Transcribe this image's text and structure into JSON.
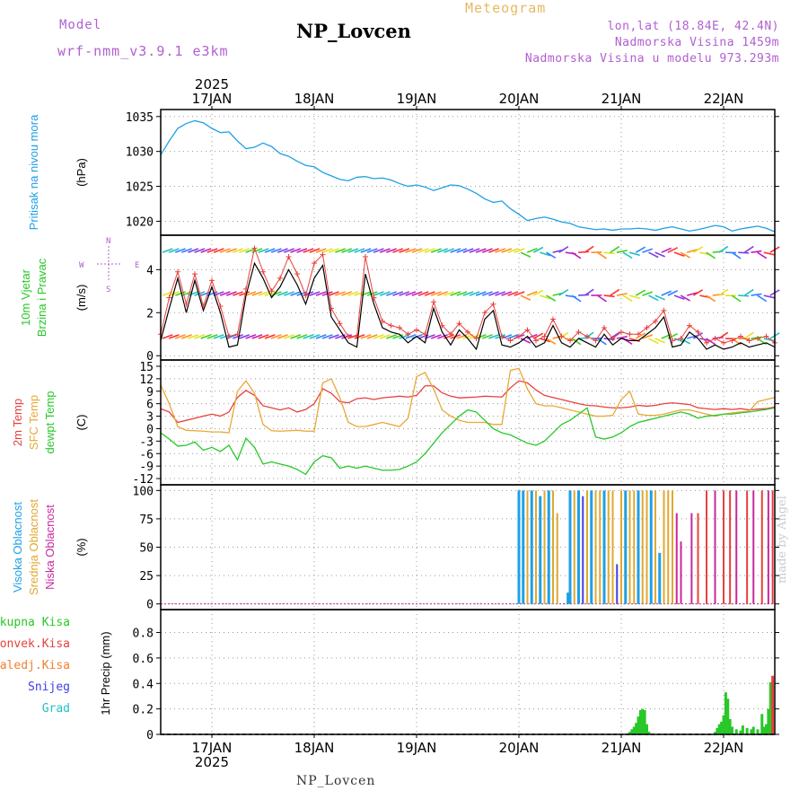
{
  "header": {
    "model_label": "Model",
    "model_name": "wrf-nmm_v3.9.1 e3km",
    "station_title": "NP_Lovcen",
    "meteogram_label": "Meteogram",
    "lonlat": "lon,lat (18.84E, 42.4N)",
    "altitude": "Nadmorska Visina 1459m",
    "model_altitude": "Nadmorska Visina u modelu 973.293m"
  },
  "footer": {
    "station": "NP_Lovcen",
    "watermark": "made by Angel"
  },
  "time_axis": {
    "year": "2025",
    "start_hour": 0,
    "end_hour": 144,
    "day_labels": [
      {
        "label": "17JAN",
        "hour": 12
      },
      {
        "label": "18JAN",
        "hour": 36
      },
      {
        "label": "19JAN",
        "hour": 60
      },
      {
        "label": "20JAN",
        "hour": 84
      },
      {
        "label": "21JAN",
        "hour": 108
      },
      {
        "label": "22JAN",
        "hour": 132
      }
    ]
  },
  "colors": {
    "pressure": "#1ea0e6",
    "temp2m": "#e8403c",
    "sfc": "#e8a838",
    "dewpt": "#28c828",
    "high": "#1ea0e6",
    "mid": "#e0a830",
    "low": "#c8289c",
    "rain": "#28c828",
    "conv": "#e8403c",
    "frozen": "#f08030",
    "snow": "#4040e0",
    "hail": "#20c0c0",
    "wind_obs": "#e8403c",
    "wind_model": "#000000"
  },
  "chart_data": [
    {
      "type": "line",
      "id": "pressure",
      "ylabel_lines": [
        "Pritisak na nivou mora"
      ],
      "units": "(hPa)",
      "ylim": [
        1018,
        1036
      ],
      "yticks": [
        1020,
        1025,
        1030,
        1035
      ],
      "hours": [
        0,
        2,
        4,
        6,
        8,
        10,
        12,
        14,
        16,
        18,
        20,
        22,
        24,
        26,
        28,
        30,
        32,
        34,
        36,
        38,
        40,
        42,
        44,
        46,
        48,
        50,
        52,
        54,
        56,
        58,
        60,
        62,
        64,
        66,
        68,
        70,
        72,
        74,
        76,
        78,
        80,
        82,
        84,
        86,
        88,
        90,
        92,
        94,
        96,
        98,
        100,
        102,
        104,
        106,
        108,
        110,
        112,
        114,
        116,
        118,
        120,
        122,
        124,
        126,
        128,
        130,
        132,
        134,
        136,
        138,
        140,
        142,
        144
      ],
      "values": [
        1029.5,
        1031.5,
        1033.3,
        1034.0,
        1034.4,
        1034.1,
        1033.3,
        1032.7,
        1032.8,
        1031.5,
        1030.4,
        1030.6,
        1031.2,
        1030.7,
        1029.7,
        1029.3,
        1028.6,
        1028.0,
        1027.8,
        1027.0,
        1026.5,
        1026.0,
        1025.8,
        1026.3,
        1026.4,
        1026.1,
        1026.2,
        1025.9,
        1025.4,
        1025.0,
        1025.2,
        1024.9,
        1024.4,
        1024.8,
        1025.2,
        1025.1,
        1024.6,
        1024.0,
        1023.2,
        1022.7,
        1022.9,
        1021.8,
        1021.0,
        1020.1,
        1020.4,
        1020.6,
        1020.3,
        1019.9,
        1019.7,
        1019.2,
        1019.0,
        1018.8,
        1018.9,
        1018.7,
        1018.9,
        1018.9,
        1019.0,
        1018.9,
        1018.7,
        1019.0,
        1019.2,
        1018.9,
        1018.6,
        1018.8,
        1019.1,
        1019.4,
        1019.2,
        1018.6,
        1018.9,
        1019.1,
        1019.3,
        1019.0,
        1018.5
      ]
    },
    {
      "type": "line",
      "id": "wind",
      "ylabel_lines": [
        "10m Vjetar",
        "Brzina i Pravac"
      ],
      "units": "(m/s)",
      "compass_labels": [
        "W",
        "E",
        "N",
        "S"
      ],
      "ylim": [
        -0.2,
        5.6
      ],
      "yticks": [
        0,
        2,
        4
      ],
      "hours": [
        0,
        2,
        4,
        6,
        8,
        10,
        12,
        14,
        16,
        18,
        20,
        22,
        24,
        26,
        28,
        30,
        32,
        34,
        36,
        38,
        40,
        42,
        44,
        46,
        48,
        50,
        52,
        54,
        56,
        58,
        60,
        62,
        64,
        66,
        68,
        70,
        72,
        74,
        76,
        78,
        80,
        82,
        84,
        86,
        88,
        90,
        92,
        94,
        96,
        98,
        100,
        102,
        104,
        106,
        108,
        110,
        112,
        114,
        116,
        118,
        120,
        122,
        124,
        126,
        128,
        130,
        132,
        134,
        136,
        138,
        140,
        142,
        144
      ],
      "model": [
        0.7,
        2.2,
        3.6,
        2.0,
        3.5,
        2.1,
        3.2,
        2.0,
        0.4,
        0.5,
        2.8,
        4.3,
        3.6,
        2.7,
        3.2,
        4.0,
        3.3,
        2.4,
        3.6,
        4.2,
        1.8,
        1.2,
        0.6,
        0.4,
        3.8,
        2.4,
        1.3,
        1.1,
        1.0,
        0.6,
        0.9,
        0.6,
        2.2,
        1.1,
        0.5,
        1.2,
        0.8,
        0.3,
        1.7,
        2.1,
        0.5,
        0.4,
        0.6,
        0.9,
        0.4,
        0.6,
        1.4,
        0.6,
        0.4,
        0.8,
        0.6,
        0.4,
        1.0,
        0.5,
        0.8,
        0.7,
        0.7,
        1.0,
        1.3,
        1.8,
        0.4,
        0.5,
        1.1,
        0.8,
        0.3,
        0.5,
        0.3,
        0.4,
        0.6,
        0.4,
        0.5,
        0.6,
        0.4
      ],
      "observed": [
        1.0,
        2.7,
        3.9,
        2.4,
        3.8,
        2.3,
        3.5,
        2.3,
        0.9,
        1.0,
        3.1,
        5.0,
        3.9,
        3.0,
        3.6,
        4.6,
        3.8,
        2.8,
        4.3,
        4.7,
        2.2,
        1.5,
        0.9,
        0.9,
        4.6,
        2.7,
        1.6,
        1.4,
        1.3,
        1.0,
        1.2,
        1.0,
        2.5,
        1.4,
        1.0,
        1.5,
        1.1,
        0.8,
        2.0,
        2.4,
        0.9,
        0.7,
        0.9,
        1.2,
        0.7,
        0.9,
        1.7,
        0.9,
        0.7,
        1.1,
        0.9,
        0.7,
        1.3,
        0.8,
        1.1,
        1.0,
        1.0,
        1.3,
        1.6,
        2.1,
        0.7,
        0.8,
        1.4,
        1.1,
        0.6,
        0.8,
        0.6,
        0.7,
        0.9,
        0.7,
        0.8,
        0.9,
        0.6
      ],
      "barb_rows": [
        0.8,
        2.8,
        4.8
      ]
    },
    {
      "type": "line",
      "id": "temperature",
      "ylabel_lines": [
        "2m Temp",
        "SFC Temp",
        "dewpt Temp"
      ],
      "units": "(C)",
      "ylim": [
        -13.5,
        16.5
      ],
      "yticks": [
        -12,
        -9,
        -6,
        -3,
        0,
        3,
        6,
        9,
        12,
        15
      ],
      "hours": [
        0,
        2,
        4,
        6,
        8,
        10,
        12,
        14,
        16,
        18,
        20,
        22,
        24,
        26,
        28,
        30,
        32,
        34,
        36,
        38,
        40,
        42,
        44,
        46,
        48,
        50,
        52,
        54,
        56,
        58,
        60,
        62,
        64,
        66,
        68,
        70,
        72,
        74,
        76,
        78,
        80,
        82,
        84,
        86,
        88,
        90,
        92,
        94,
        96,
        98,
        100,
        102,
        104,
        106,
        108,
        110,
        112,
        114,
        116,
        118,
        120,
        122,
        124,
        126,
        128,
        130,
        132,
        134,
        136,
        138,
        140,
        142,
        144
      ],
      "t2m": [
        4.8,
        4.0,
        1.5,
        2.0,
        2.5,
        3.0,
        3.5,
        3.0,
        4.0,
        7.5,
        9.2,
        8.0,
        5.5,
        5.0,
        4.5,
        5.0,
        4.0,
        4.6,
        6.0,
        9.6,
        8.5,
        6.5,
        6.2,
        7.2,
        7.4,
        7.0,
        7.4,
        7.6,
        7.8,
        7.6,
        8.0,
        10.3,
        10.3,
        8.6,
        7.8,
        7.4,
        7.5,
        7.6,
        7.8,
        7.7,
        7.6,
        9.8,
        11.5,
        11.0,
        9.3,
        8.0,
        7.5,
        7.0,
        6.5,
        6.0,
        5.6,
        5.5,
        5.2,
        5.0,
        5.0,
        5.2,
        5.6,
        5.4,
        5.6,
        6.0,
        6.2,
        6.0,
        5.8,
        5.0,
        4.8,
        4.6,
        4.8,
        4.6,
        4.8,
        4.5,
        4.7,
        4.8,
        5.2
      ],
      "sfc": [
        10.5,
        6.0,
        0.5,
        -0.4,
        -0.5,
        -0.6,
        -0.8,
        -0.8,
        -1.0,
        9.0,
        11.5,
        8.5,
        1.0,
        -0.5,
        -0.6,
        -0.5,
        -0.4,
        -0.6,
        -0.6,
        11.0,
        12.0,
        7.5,
        1.5,
        0.5,
        0.5,
        1.0,
        1.5,
        1.0,
        0.5,
        2.5,
        12.5,
        13.5,
        9.5,
        4.5,
        3.0,
        2.0,
        1.5,
        1.5,
        1.5,
        1.0,
        1.0,
        14.0,
        14.5,
        9.5,
        6.0,
        5.5,
        5.5,
        5.0,
        4.5,
        4.0,
        3.5,
        3.0,
        3.0,
        3.2,
        7.0,
        9.0,
        3.5,
        3.2,
        3.2,
        3.5,
        4.0,
        4.5,
        4.5,
        4.0,
        3.5,
        3.0,
        3.5,
        3.8,
        4.0,
        4.2,
        6.5,
        7.0,
        7.5
      ],
      "dewpt": [
        -1.0,
        -2.5,
        -4.2,
        -4.0,
        -3.2,
        -5.2,
        -4.5,
        -5.5,
        -4.0,
        -7.5,
        -2.3,
        -4.5,
        -8.5,
        -8.0,
        -8.5,
        -9.0,
        -9.8,
        -11.0,
        -8.0,
        -6.5,
        -7.0,
        -9.5,
        -9.0,
        -9.5,
        -9.0,
        -9.5,
        -10.0,
        -10.0,
        -9.8,
        -9.0,
        -8.0,
        -6.0,
        -3.5,
        -1.0,
        1.0,
        3.0,
        4.5,
        4.0,
        2.0,
        0.0,
        -1.0,
        -1.5,
        -2.5,
        -3.5,
        -4.0,
        -3.0,
        -1.0,
        1.0,
        2.0,
        3.5,
        5.0,
        -2.0,
        -2.5,
        -2.0,
        -1.0,
        0.5,
        1.5,
        2.0,
        2.5,
        3.0,
        3.5,
        4.0,
        3.5,
        2.5,
        3.0,
        3.2,
        3.5,
        3.5,
        3.8,
        4.0,
        4.3,
        4.6,
        5.0
      ]
    },
    {
      "type": "bar",
      "id": "clouds",
      "ylabel_lines": [
        "Visoka Oblacnost",
        "Srednja Oblacnost",
        "Niska Oblacnost"
      ],
      "units": "(%)",
      "ylim": [
        -5,
        105
      ],
      "yticks": [
        0,
        25,
        50,
        75,
        100
      ],
      "bars": [
        {
          "hour": 84.0,
          "type": "high",
          "value": 100
        },
        {
          "hour": 85.0,
          "type": "high",
          "value": 100
        },
        {
          "hour": 86.0,
          "type": "mid",
          "value": 100
        },
        {
          "hour": 87.0,
          "type": "high",
          "value": 100
        },
        {
          "hour": 88.0,
          "type": "mid",
          "value": 100
        },
        {
          "hour": 89.0,
          "type": "high",
          "value": 95
        },
        {
          "hour": 90.0,
          "type": "mid",
          "value": 100
        },
        {
          "hour": 91.0,
          "type": "high",
          "value": 100
        },
        {
          "hour": 92.0,
          "type": "mid",
          "value": 100
        },
        {
          "hour": 93.0,
          "type": "mid",
          "value": 80
        },
        {
          "hour": 95.5,
          "type": "high",
          "value": 10
        },
        {
          "hour": 96.0,
          "type": "high",
          "value": 100
        },
        {
          "hour": 97.0,
          "type": "mid",
          "value": 100
        },
        {
          "hour": 98.0,
          "type": "high",
          "value": 100
        },
        {
          "hour": 99.0,
          "type": "snow",
          "value": 95
        },
        {
          "hour": 100.0,
          "type": "mid",
          "value": 100
        },
        {
          "hour": 101.0,
          "type": "high",
          "value": 100
        },
        {
          "hour": 102.0,
          "type": "mid",
          "value": 100
        },
        {
          "hour": 103.0,
          "type": "mid",
          "value": 100
        },
        {
          "hour": 104.0,
          "type": "high",
          "value": 100
        },
        {
          "hour": 105.0,
          "type": "mid",
          "value": 100
        },
        {
          "hour": 106.0,
          "type": "mid",
          "value": 100
        },
        {
          "hour": 107.0,
          "type": "snow",
          "value": 35
        },
        {
          "hour": 108.0,
          "type": "mid",
          "value": 100
        },
        {
          "hour": 109.0,
          "type": "high",
          "value": 100
        },
        {
          "hour": 110.0,
          "type": "mid",
          "value": 100
        },
        {
          "hour": 111.0,
          "type": "mid",
          "value": 100
        },
        {
          "hour": 112.0,
          "type": "high",
          "value": 100
        },
        {
          "hour": 113.0,
          "type": "mid",
          "value": 100
        },
        {
          "hour": 114.0,
          "type": "mid",
          "value": 100
        },
        {
          "hour": 115.0,
          "type": "high",
          "value": 100
        },
        {
          "hour": 116.0,
          "type": "mid",
          "value": 100
        },
        {
          "hour": 117.0,
          "type": "high",
          "value": 45
        },
        {
          "hour": 118.0,
          "type": "mid",
          "value": 100
        },
        {
          "hour": 119.0,
          "type": "mid",
          "value": 100
        },
        {
          "hour": 120.0,
          "type": "mid",
          "value": 100
        },
        {
          "hour": 121.0,
          "type": "low",
          "value": 80
        },
        {
          "hour": 122.0,
          "type": "low",
          "value": 55
        },
        {
          "hour": 124.5,
          "type": "low",
          "value": 80
        },
        {
          "hour": 126.0,
          "type": "conv",
          "value": 80
        },
        {
          "hour": 128.0,
          "type": "conv",
          "value": 100
        },
        {
          "hour": 130.0,
          "type": "low",
          "value": 100
        },
        {
          "hour": 132.0,
          "type": "conv",
          "value": 100
        },
        {
          "hour": 133.5,
          "type": "conv",
          "value": 100
        },
        {
          "hour": 135.0,
          "type": "low",
          "value": 100
        },
        {
          "hour": 137.5,
          "type": "conv",
          "value": 100
        },
        {
          "hour": 139.0,
          "type": "low",
          "value": 100
        },
        {
          "hour": 141.0,
          "type": "conv",
          "value": 100
        },
        {
          "hour": 142.5,
          "type": "low",
          "value": 100
        },
        {
          "hour": 143.5,
          "type": "conv",
          "value": 100
        }
      ]
    },
    {
      "type": "bar",
      "id": "precip",
      "ylabel_lines": [
        "Ukupna Kisa",
        "Konvek.Kisa",
        "Zaledj.Kisa",
        "Snijeg",
        "Grad"
      ],
      "units": "1hr Precip (mm)",
      "ylim": [
        0,
        0.98
      ],
      "yticks": [
        0,
        0.2,
        0.4,
        0.6,
        0.8
      ],
      "ytick_labels": [
        "0",
        "0.2",
        "0.4",
        "0.6",
        "0.8"
      ],
      "bars": [
        {
          "hour": 110.0,
          "type": "rain",
          "value": 0.02
        },
        {
          "hour": 110.5,
          "type": "rain",
          "value": 0.04
        },
        {
          "hour": 111.0,
          "type": "rain",
          "value": 0.06
        },
        {
          "hour": 111.5,
          "type": "rain",
          "value": 0.09
        },
        {
          "hour": 112.0,
          "type": "rain",
          "value": 0.14
        },
        {
          "hour": 112.5,
          "type": "rain",
          "value": 0.19
        },
        {
          "hour": 113.0,
          "type": "rain",
          "value": 0.2
        },
        {
          "hour": 113.5,
          "type": "rain",
          "value": 0.19
        },
        {
          "hour": 114.0,
          "type": "rain",
          "value": 0.08
        },
        {
          "hour": 114.5,
          "type": "rain",
          "value": 0.02
        },
        {
          "hour": 130.0,
          "type": "rain",
          "value": 0.02
        },
        {
          "hour": 130.5,
          "type": "rain",
          "value": 0.05
        },
        {
          "hour": 131.0,
          "type": "rain",
          "value": 0.08
        },
        {
          "hour": 131.5,
          "type": "rain",
          "value": 0.1
        },
        {
          "hour": 132.0,
          "type": "rain",
          "value": 0.15
        },
        {
          "hour": 132.5,
          "type": "rain",
          "value": 0.33
        },
        {
          "hour": 133.0,
          "type": "rain",
          "value": 0.28
        },
        {
          "hour": 133.5,
          "type": "rain",
          "value": 0.12
        },
        {
          "hour": 134.0,
          "type": "rain",
          "value": 0.06
        },
        {
          "hour": 135.0,
          "type": "rain",
          "value": 0.04
        },
        {
          "hour": 136.0,
          "type": "rain",
          "value": 0.03
        },
        {
          "hour": 136.5,
          "type": "rain",
          "value": 0.07
        },
        {
          "hour": 137.5,
          "type": "rain",
          "value": 0.05
        },
        {
          "hour": 138.5,
          "type": "rain",
          "value": 0.04
        },
        {
          "hour": 139.0,
          "type": "rain",
          "value": 0.06
        },
        {
          "hour": 140.0,
          "type": "rain",
          "value": 0.04
        },
        {
          "hour": 141.0,
          "type": "rain",
          "value": 0.16
        },
        {
          "hour": 141.5,
          "type": "rain",
          "value": 0.06
        },
        {
          "hour": 142.0,
          "type": "rain",
          "value": 0.08
        },
        {
          "hour": 142.5,
          "type": "rain",
          "value": 0.2
        },
        {
          "hour": 143.0,
          "type": "rain",
          "value": 0.41
        },
        {
          "hour": 143.5,
          "type": "conv",
          "value": 0.46
        }
      ]
    }
  ]
}
